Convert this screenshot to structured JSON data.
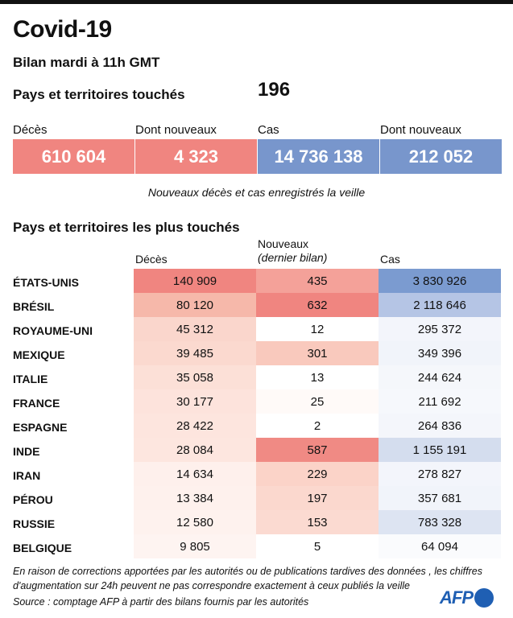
{
  "title": "Covid-19",
  "subtitle": "Bilan mardi à 11h GMT",
  "pays_touches": {
    "label": "Pays et territoires touchés",
    "value": "196"
  },
  "summary": [
    {
      "label": "Décès",
      "value": "610 604",
      "color": "#f08580"
    },
    {
      "label": "Dont nouveaux",
      "value": "4 323",
      "color": "#f08580"
    },
    {
      "label": "Cas",
      "value": "14 736 138",
      "color": "#7896cc"
    },
    {
      "label": "Dont nouveaux",
      "value": "212 052",
      "color": "#7896cc"
    }
  ],
  "note": "Nouveaux décès et cas enregistrés la veille",
  "chart_data": {
    "type": "table",
    "title": "Pays et territoires les plus touchés",
    "columns": [
      "Décès",
      "Nouveaux",
      "(dernier bilan)",
      "Cas"
    ],
    "rows": [
      {
        "country": "ÉTATS-UNIS",
        "deces": "140 909",
        "nouveaux": "435",
        "cas": "3 830 926",
        "c": [
          "#f08580",
          "#f4a199",
          "#7b9bd0"
        ]
      },
      {
        "country": "BRÉSIL",
        "deces": "80 120",
        "nouveaux": "632",
        "cas": "2 118 646",
        "c": [
          "#f6b8aa",
          "#f08580",
          "#b5c5e5"
        ]
      },
      {
        "country": "ROYAUME-UNI",
        "deces": "45 312",
        "nouveaux": "12",
        "cas": "295 372",
        "c": [
          "#fad6cc",
          "#ffffff",
          "#f3f5fb"
        ]
      },
      {
        "country": "MEXIQUE",
        "deces": "39 485",
        "nouveaux": "301",
        "cas": "349 396",
        "c": [
          "#fbd9cf",
          "#f9c9bd",
          "#f1f4fa"
        ]
      },
      {
        "country": "ITALIE",
        "deces": "35 058",
        "nouveaux": "13",
        "cas": "244 624",
        "c": [
          "#fce0d7",
          "#ffffff",
          "#f5f7fb"
        ]
      },
      {
        "country": "FRANCE",
        "deces": "30 177",
        "nouveaux": "25",
        "cas": "211 692",
        "c": [
          "#fde3dc",
          "#fffaf8",
          "#f6f8fc"
        ]
      },
      {
        "country": "ESPAGNE",
        "deces": "28 422",
        "nouveaux": "2",
        "cas": "264 836",
        "c": [
          "#fde5de",
          "#ffffff",
          "#f4f6fb"
        ]
      },
      {
        "country": "INDE",
        "deces": "28 084",
        "nouveaux": "587",
        "cas": "1 155 191",
        "c": [
          "#fde6df",
          "#f08a84",
          "#d4ddee"
        ]
      },
      {
        "country": "IRAN",
        "deces": "14 634",
        "nouveaux": "229",
        "cas": "278 827",
        "c": [
          "#fef0ec",
          "#fbd3c8",
          "#f3f5fb"
        ]
      },
      {
        "country": "PÉROU",
        "deces": "13 384",
        "nouveaux": "197",
        "cas": "357 681",
        "c": [
          "#fef1ed",
          "#fbd8ce",
          "#f1f4fa"
        ]
      },
      {
        "country": "RUSSIE",
        "deces": "12 580",
        "nouveaux": "153",
        "cas": "783 328",
        "c": [
          "#fef2ee",
          "#fbdad1",
          "#dde4f2"
        ]
      },
      {
        "country": "BELGIQUE",
        "deces": "9 805",
        "nouveaux": "5",
        "cas": "64 094",
        "c": [
          "#fef4f1",
          "#ffffff",
          "#fafbfd"
        ]
      }
    ]
  },
  "footnote1": "En raison de corrections apportées par les autorités ou de publications tardives des données , les chiffres",
  "footnote2": "d'augmentation sur 24h peuvent ne pas correspondre exactement à ceux publiés la veille",
  "source": "Source : comptage AFP à partir des bilans fournis par les autorités",
  "logo": "AFP"
}
